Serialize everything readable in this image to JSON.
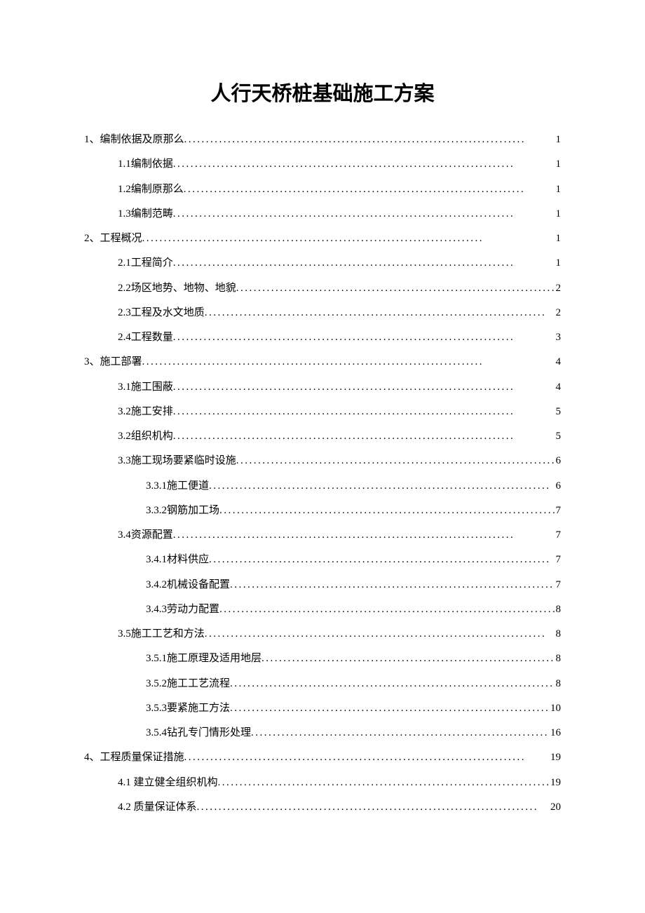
{
  "title": "人行天桥桩基础施工方案",
  "dots": "..............................................................................",
  "toc": [
    {
      "level": 0,
      "label": "1、编制依据及原那么",
      "page": "1"
    },
    {
      "level": 1,
      "label": "1.1编制依据",
      "page": "1"
    },
    {
      "level": 1,
      "label": "1.2编制原那么",
      "page": "1"
    },
    {
      "level": 1,
      "label": "1.3编制范畴",
      "page": "1"
    },
    {
      "level": 0,
      "label": "2、工程概况",
      "page": "1"
    },
    {
      "level": 1,
      "label": "2.1工程简介",
      "page": "1"
    },
    {
      "level": 1,
      "label": "2.2场区地势、地物、地貌",
      "page": "2"
    },
    {
      "level": 1,
      "label": "2.3工程及水文地质",
      "page": "2"
    },
    {
      "level": 1,
      "label": "2.4工程数量",
      "page": "3"
    },
    {
      "level": 0,
      "label": "3、施工部署",
      "page": "4"
    },
    {
      "level": 1,
      "label": "3.1施工围蔽",
      "page": "4"
    },
    {
      "level": 1,
      "label": "3.2施工安排",
      "page": "5"
    },
    {
      "level": 1,
      "label": "3.2组织机构",
      "page": "5"
    },
    {
      "level": 1,
      "label": "3.3施工现场要紧临时设施",
      "page": "6"
    },
    {
      "level": 2,
      "label": "3.3.1施工便道",
      "page": "6"
    },
    {
      "level": 2,
      "label": "3.3.2钢筋加工场",
      "page": "7"
    },
    {
      "level": 1,
      "label": "3.4资源配置",
      "page": "7"
    },
    {
      "level": 2,
      "label": "3.4.1材料供应",
      "page": "7"
    },
    {
      "level": 2,
      "label": "3.4.2机械设备配置",
      "page": "7"
    },
    {
      "level": 2,
      "label": "3.4.3劳动力配置",
      "page": "8"
    },
    {
      "level": 1,
      "label": "3.5施工工艺和方法",
      "page": "8"
    },
    {
      "level": 2,
      "label": "3.5.1施工原理及适用地层",
      "page": "8"
    },
    {
      "level": 2,
      "label": "3.5.2施工工艺流程",
      "page": "8"
    },
    {
      "level": 2,
      "label": "3.5.3要紧施工方法",
      "page": "10"
    },
    {
      "level": 2,
      "label": "3.5.4钻孔专门情形处理",
      "page": "16"
    },
    {
      "level": 0,
      "label": "4、工程质量保证措施",
      "page": "19"
    },
    {
      "level": 1,
      "label": "4.1 建立健全组织机构",
      "page": "19"
    },
    {
      "level": 1,
      "label": "4.2 质量保证体系",
      "page": "20"
    }
  ],
  "styles": {
    "background_color": "#ffffff",
    "text_color": "#000000",
    "title_fontsize": 29,
    "body_fontsize": 15,
    "line_height": 2.35,
    "font_family": "SimSun"
  }
}
